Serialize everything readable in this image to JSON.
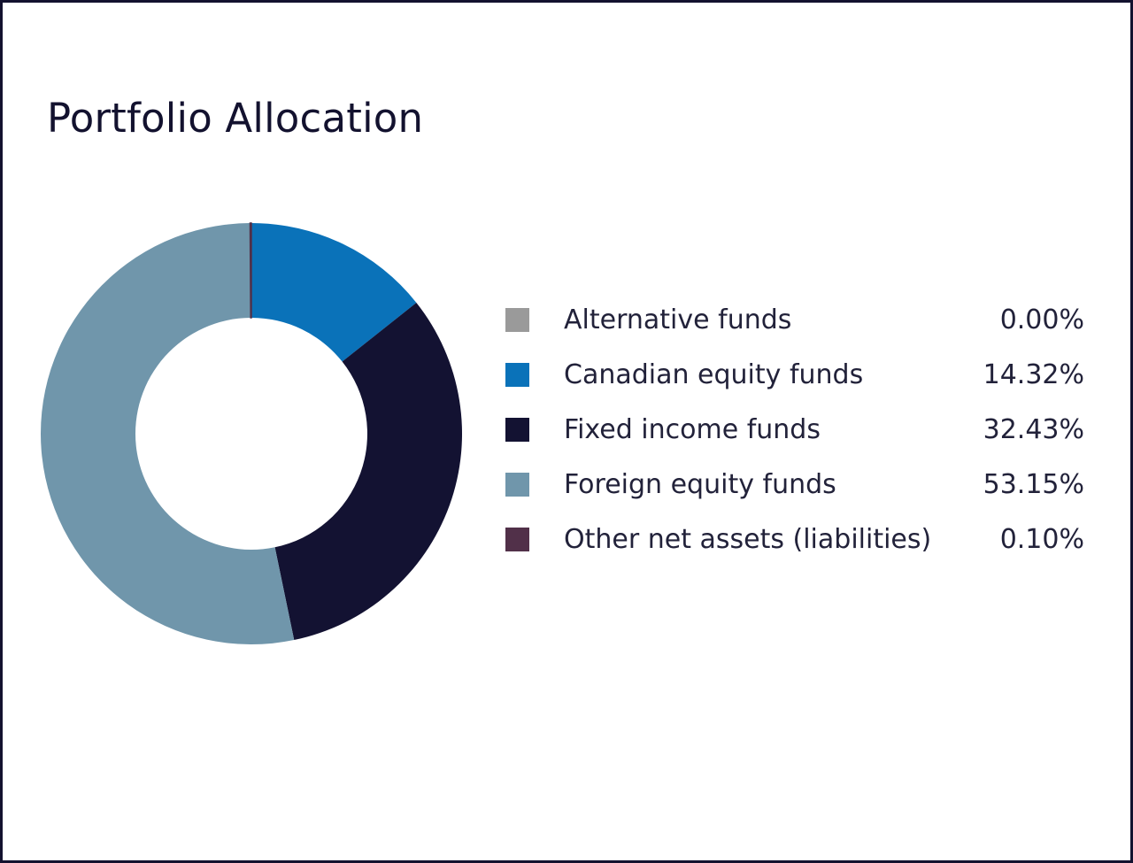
{
  "chart_data": {
    "type": "pie",
    "title": "Portfolio Allocation",
    "categories": [
      "Alternative funds",
      "Canadian equity funds",
      "Fixed income funds",
      "Foreign equity funds",
      "Other net assets (liabilities)"
    ],
    "values": [
      0.0,
      14.32,
      32.43,
      53.15,
      0.1
    ],
    "value_labels": [
      "0.00%",
      "14.32%",
      "32.43%",
      "53.15%",
      "0.10%"
    ],
    "colors": [
      "#9a9a9a",
      "#0a72b9",
      "#131232",
      "#7096ab",
      "#513049"
    ],
    "donut": true,
    "legend_position": "right"
  }
}
